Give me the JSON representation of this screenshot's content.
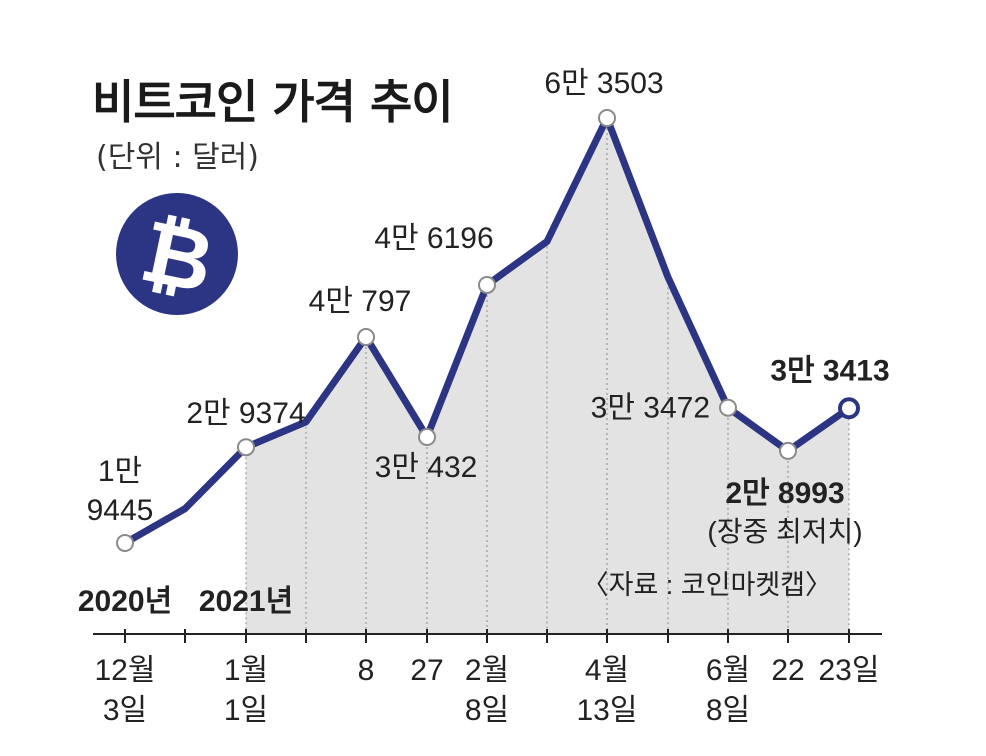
{
  "title": "비트코인 가격 추이",
  "subtitle": "(단위 : 달러)",
  "source": "〈자료 : 코인마켓캡〉",
  "icon": {
    "name": "bitcoin-icon",
    "glyph": "₿",
    "color": "#2c3583"
  },
  "colors": {
    "line": "#2c3583",
    "area": "#e3e3e3",
    "axis": "#222222"
  },
  "chart_data": {
    "type": "area",
    "title": "비트코인 가격 추이",
    "unit": "(단위 : 달러)",
    "points": [
      {
        "date": "2020-12-03",
        "value": 19445,
        "label_lines": [
          "1만",
          "9445"
        ],
        "tick_lines": [
          "12월",
          "3일"
        ],
        "marker": true
      },
      {
        "date": "2020-12-17",
        "value": 23000,
        "marker": false
      },
      {
        "date": "2021-01-01",
        "value": 29374,
        "label_lines": [
          "2만 9374"
        ],
        "tick_lines": [
          "1월",
          "1일"
        ],
        "marker": true
      },
      {
        "date": "2021-01-04",
        "value": 32000,
        "marker": false
      },
      {
        "date": "2021-01-08",
        "value": 40797,
        "label_lines": [
          "4만 797"
        ],
        "tick_lines": [
          "8"
        ],
        "marker": true
      },
      {
        "date": "2021-01-27",
        "value": 30432,
        "label_lines": [
          "3만 432"
        ],
        "tick_lines": [
          "27"
        ],
        "marker": true
      },
      {
        "date": "2021-02-08",
        "value": 46196,
        "label_lines": [
          "4만 6196"
        ],
        "tick_lines": [
          "2월",
          "8일"
        ],
        "marker": true
      },
      {
        "date": "2021-03-10",
        "value": 50700,
        "marker": false
      },
      {
        "date": "2021-04-13",
        "value": 63503,
        "label_lines": [
          "6만 3503"
        ],
        "tick_lines": [
          "4월",
          "13일"
        ],
        "marker": true
      },
      {
        "date": "2021-05-10",
        "value": 47000,
        "marker": false
      },
      {
        "date": "2021-06-08",
        "value": 33472,
        "label_lines": [
          "3만 3472"
        ],
        "tick_lines": [
          "6월",
          "8일"
        ],
        "marker": true
      },
      {
        "date": "2021-06-22",
        "value": 28993,
        "label_lines": [
          "2만 8993"
        ],
        "tick_lines": [
          "22"
        ],
        "note": "(장중 최저치)",
        "marker": true,
        "bold": true
      },
      {
        "date": "2021-06-23",
        "value": 33413,
        "label_lines": [
          "3만 3413"
        ],
        "tick_lines": [
          "23일"
        ],
        "marker": true,
        "bold": true,
        "last": true
      }
    ],
    "year_labels": [
      {
        "text": "2020년",
        "at_date": "2020-12-03"
      },
      {
        "text": "2021년",
        "at_date": "2021-01-01"
      }
    ],
    "ylim": [
      0,
      70000
    ]
  }
}
